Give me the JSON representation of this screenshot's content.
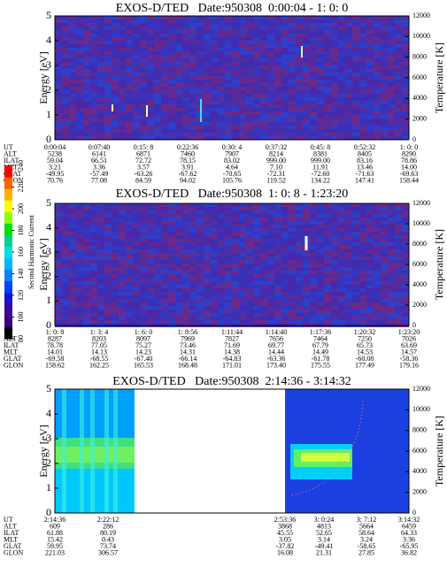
{
  "chart_data": [
    {
      "type": "spectrogram",
      "title": "EXOS-D/TED   Date:950308  0:00:04 - 1: 0: 0",
      "ylabel": "Energy [eV]",
      "y2label": "Temperature [K]",
      "ylim": [
        0,
        5
      ],
      "yticks": [
        0,
        1,
        2,
        3,
        4,
        5
      ],
      "y2lim": [
        0,
        12000
      ],
      "y2ticks": [
        0,
        2000,
        4000,
        6000,
        8000,
        10000,
        12000
      ],
      "table": {
        "row_labels": [
          "UT",
          "ALT",
          "ILAT",
          "MLT",
          "GLAT",
          "GLON"
        ],
        "rows": [
          [
            "0:00:04",
            "0:07:40",
            "0:15: 8",
            "0:22:36",
            "0:30: 4",
            "0:37:32",
            "0:45: 8",
            "0:52:32",
            "1: 0: 0"
          ],
          [
            "5238",
            "6141",
            "6871",
            "7460",
            "7907",
            "8214",
            "8381",
            "8405",
            "8290"
          ],
          [
            "59.04",
            "66.51",
            "72.72",
            "78.15",
            "83.02",
            "999.00",
            "999.00",
            "83.16",
            "78.86"
          ],
          [
            "3.21",
            "3.36",
            "3.57",
            "3.91",
            "4.64",
            "7.10",
            "11.91",
            "13.46",
            "14.00"
          ],
          [
            "-49.95",
            "-57.49",
            "-63.26",
            "-67.62",
            "-70.65",
            "-72.31",
            "-72.60",
            "-71.63",
            "-69.63"
          ],
          [
            "70.76",
            "77.08",
            "84.59",
            "94.02",
            "105.76",
            "119.52",
            "134.22",
            "147.41",
            "158.44"
          ]
        ]
      }
    },
    {
      "type": "spectrogram",
      "title": "EXOS-D/TED   Date:950308  1: 0: 8 - 1:23:20",
      "ylabel": "Energy [eV]",
      "y2label": "Temperature [K]",
      "ylim": [
        0,
        5
      ],
      "yticks": [
        0,
        1,
        2,
        3,
        4,
        5
      ],
      "y2lim": [
        0,
        12000
      ],
      "y2ticks": [
        0,
        2000,
        4000,
        6000,
        8000,
        10000,
        12000
      ],
      "table": {
        "row_labels": [
          "UT",
          "ALT",
          "ILAT",
          "MLT",
          "GLAT",
          "GLON"
        ],
        "rows": [
          [
            "1: 0: 8",
            "1: 3: 4",
            "1: 6: 0",
            "1: 8:56",
            "1:11:44",
            "1:14:40",
            "1:17:36",
            "1:20:32",
            "1:23:20"
          ],
          [
            "8287",
            "8203",
            "8097",
            "7969",
            "7827",
            "7656",
            "7464",
            "7250",
            "7026"
          ],
          [
            "78.78",
            "77.05",
            "75.27",
            "73.46",
            "71.69",
            "69.77",
            "67.79",
            "65.73",
            "63.69"
          ],
          [
            "14.01",
            "14.13",
            "14.23",
            "14.31",
            "14.38",
            "14.44",
            "14.49",
            "14.53",
            "14.57"
          ],
          [
            "-69.58",
            "-68.55",
            "-67.40",
            "-66.14",
            "-64.83",
            "-63.36",
            "-61.78",
            "-60.08",
            "-58.36"
          ],
          [
            "158.62",
            "162.25",
            "165.53",
            "168.48",
            "171.01",
            "173.40",
            "175.55",
            "177.49",
            "179.16"
          ]
        ]
      }
    },
    {
      "type": "spectrogram",
      "title": "EXOS-D/TED   Date:950308  2:14:36 - 3:14:32",
      "ylabel": "Energy [eV]",
      "y2label": "Temperature [K]",
      "ylim": [
        0,
        5
      ],
      "yticks": [
        0,
        1,
        2,
        3,
        4,
        5
      ],
      "y2lim": [
        0,
        12000
      ],
      "y2ticks": [
        0,
        2000,
        4000,
        6000,
        8000,
        10000,
        12000
      ],
      "table": {
        "row_labels": [
          "UT",
          "ALT",
          "ILAT",
          "MLT",
          "GLAT",
          "GLON"
        ],
        "rows": [
          [
            "2:14:36",
            "2:22:12",
            "2:53:36",
            "3: 0:24",
            "3: 7:12",
            "3:14:32"
          ],
          [
            "609",
            "286",
            "3868",
            "4813",
            "5664",
            "6459"
          ],
          [
            "61.88",
            "80.19",
            "45.55",
            "52.65",
            "58.64",
            "64.33"
          ],
          [
            "15.42",
            "0.43",
            "3.05",
            "3.14",
            "3.24",
            "3.36"
          ],
          [
            "59.95",
            "73.74",
            "-37.82",
            "-49.41",
            "-58.65",
            "-65.95"
          ],
          [
            "221.03",
            "306.57",
            "16.08",
            "21.31",
            "27.85",
            "36.82"
          ]
        ]
      }
    }
  ],
  "colorbar": {
    "label": "Second Harmonic Current",
    "ticks": [
      80,
      100,
      120,
      140,
      160,
      180,
      200,
      220,
      240
    ],
    "colors": [
      "#000000",
      "#40007a",
      "#3a0aa0",
      "#1414d0",
      "#0040ff",
      "#0080ff",
      "#00b4ff",
      "#00e0e0",
      "#00d090",
      "#00e000",
      "#90ff00",
      "#ffff00",
      "#ffb000",
      "#ff6000",
      "#ff0000"
    ]
  }
}
